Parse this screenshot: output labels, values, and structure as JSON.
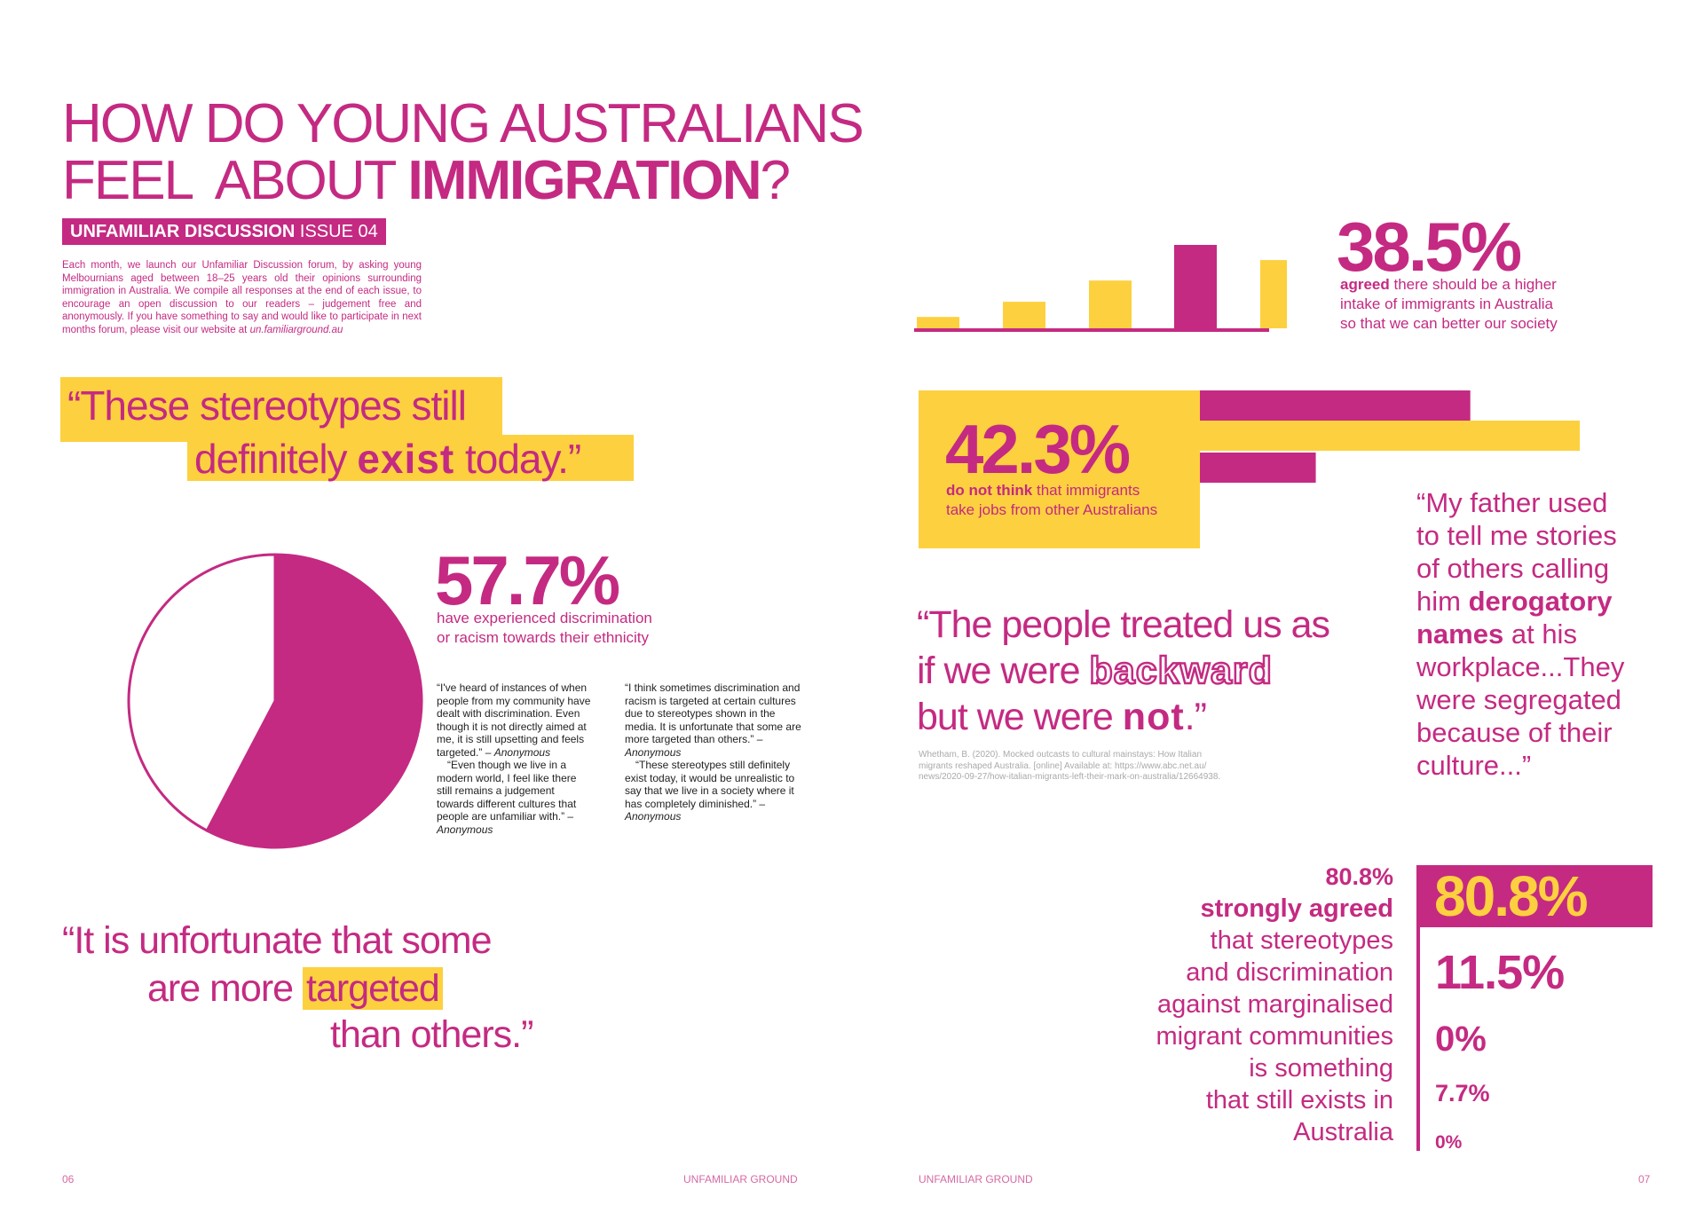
{
  "title": {
    "line1": "HOW DO YOUNG AUSTRALIANS",
    "line2_pre": "FEEL  ABOUT ",
    "line2_bold": "IMMIGRATION",
    "line2_post": "?"
  },
  "badge": {
    "bold": "UNFAMILIAR DISCUSSION",
    "rest": " ISSUE 04"
  },
  "intro": {
    "text": "Each month, we launch our Unfamiliar Discussion forum, by asking young Melbournians aged between 18–25 years old their opinions surrounding immigration in Australia. We compile all responses at the end of each issue, to encourage an open discussion to our readers – judgement free and anonymously. If you have something to say and would like to participate in next months forum, please visit our website at ",
    "link": "un.familiarground.au"
  },
  "quote_stereotypes": {
    "line1": "“These stereotypes still",
    "line2_pre": "definitely ",
    "line2_word": "exist",
    "line2_post": " today.”"
  },
  "pie": {
    "percent": "57.7%",
    "caption_line1": "have experienced discrimination",
    "caption_line2": "or racism towards their ethnicity"
  },
  "chart_data": [
    {
      "type": "pie",
      "values": [
        57.7,
        42.3
      ],
      "colors": [
        "#c42a82",
        "#ffffff"
      ]
    },
    {
      "type": "bar",
      "categories": [
        "",
        "",
        "",
        "",
        ""
      ],
      "values": [
        1.5,
        3.5,
        6.3,
        11.0,
        9.0
      ],
      "colors": [
        "#fdd03f",
        "#fdd03f",
        "#fdd03f",
        "#c42a82",
        "#fdd03f"
      ]
    },
    {
      "type": "bar",
      "orientation": "horizontal",
      "categories": [
        "",
        "",
        ""
      ],
      "values": [
        42,
        59,
        18
      ],
      "colors": [
        "#c42a82",
        "#fdd03f",
        "#c42a82"
      ]
    }
  ],
  "testimonials": {
    "col1_p1": "“I've heard of instances of when people from my community have dealt with discrimination. Even though it is not directly aimed at me, it is still upsetting and feels targeted.” – ",
    "col1_p1_author": "Anonymous",
    "col1_p2": "“Even though we live in a modern world, I feel like there still remains a judgement towards different cultures that people are unfamiliar with.” – ",
    "col1_p2_author": "Anonymous",
    "col2_p1": "“I think sometimes discrimination and racism is targeted at certain cultures due to stereotypes shown in the media. It is unfortunate that some are more targeted than others.” – ",
    "col2_p1_author": "Anonymous",
    "col2_p2": "“These stereotypes still definitely exist today, it would be unrealistic to say that we live in a society where it has completely diminished.” – ",
    "col2_p2_author": "Anonymous"
  },
  "quote_targeted": {
    "line1": "“It is unfortunate that some",
    "line2_pre": "are more ",
    "line2_word": "targeted",
    "line3": "than others.”"
  },
  "footer": {
    "page_left": "06",
    "mag_left": "UNFAMILIAR GROUND",
    "mag_right": "UNFAMILIAR GROUND",
    "page_right": "07"
  },
  "stat_38": {
    "percent": "38.5%",
    "bold": "agreed",
    "line1_rest": " there should be a higher",
    "line2": "intake of immigrants in Australia",
    "line3": "so that we can better our society"
  },
  "stat_42": {
    "percent": "42.3%",
    "bold": "do not think",
    "line1_rest": " that immigrants",
    "line2": "take jobs from other Australians"
  },
  "quote_backward": {
    "line1": "“The people treated us as",
    "line2_pre": "if we were ",
    "line2_word": "backward",
    "line3_pre": "but we were ",
    "line3_word": "not",
    "line3_post": ".”"
  },
  "citation": {
    "line1": "Whetham, B. (2020). Mocked outcasts to cultural mainstays: How Italian",
    "line2": "migrants reshaped Australia. [online] Available at: https://www.abc.net.au/",
    "line3": "news/2020-09-27/how-italian-migrants-left-their-mark-on-australia/12664938."
  },
  "quote_father": {
    "l1": "“My father used",
    "l2": "to tell me stories",
    "l3": "of others calling",
    "l4_pre": "him ",
    "l4_bold": "derogatory",
    "l5_bold": "names",
    "l5_post": " at his",
    "l6": "workplace...They",
    "l7": "were segregated",
    "l8": "because of their",
    "l9": "culture...”"
  },
  "stat_80": {
    "heading": "80.8%",
    "bold": "strongly agreed",
    "lines": [
      "that stereotypes",
      "and discrimination",
      "against marginalised",
      "migrant communities",
      "is something",
      "that still exists in",
      "Australia"
    ],
    "values": [
      "80.8%",
      "11.5%",
      "0%",
      "7.7%",
      "0%"
    ]
  }
}
